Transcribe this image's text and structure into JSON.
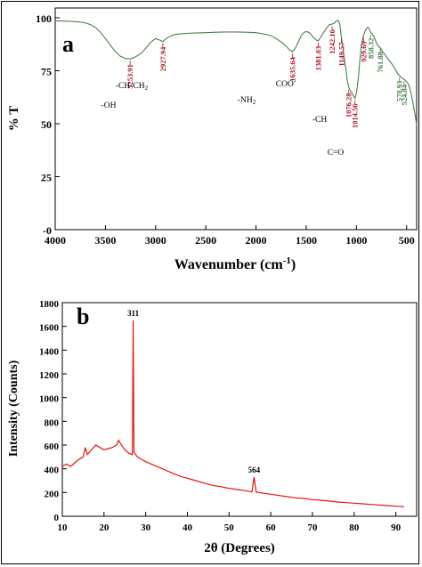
{
  "chart_data": [
    {
      "type": "line",
      "panel_label": "a",
      "xlabel": "Wavenumber (cm",
      "xlabel_sup": "-1",
      "xlabel_close": ")",
      "ylabel": "% T",
      "xlim": [
        4000,
        400
      ],
      "ylim": [
        0,
        100
      ],
      "x_ticks": [
        4000,
        3500,
        3000,
        2500,
        2000,
        1500,
        1000,
        500
      ],
      "y_ticks": [
        0,
        25,
        50,
        75,
        100
      ],
      "y_tick_labels": [
        "-0",
        "25",
        "50",
        "75",
        "100"
      ],
      "series": [
        {
          "color": "#4a7f4a",
          "x": [
            4000,
            3950,
            3900,
            3850,
            3800,
            3750,
            3700,
            3650,
            3600,
            3550,
            3500,
            3450,
            3400,
            3350,
            3300,
            3254,
            3210,
            3150,
            3100,
            3050,
            3000,
            2960,
            2928,
            2900,
            2850,
            2800,
            2700,
            2600,
            2500,
            2400,
            2300,
            2200,
            2100,
            2000,
            1900,
            1850,
            1800,
            1750,
            1700,
            1670,
            1636,
            1610,
            1580,
            1550,
            1520,
            1490,
            1460,
            1430,
            1400,
            1381,
            1360,
            1330,
            1300,
            1270,
            1242,
            1220,
            1200,
            1180,
            1165,
            1150,
            1135,
            1120,
            1100,
            1090,
            1076,
            1060,
            1045,
            1030,
            1015,
            1005,
            995,
            980,
            965,
            950,
            930,
            915,
            900,
            885,
            870,
            858,
            845,
            830,
            815,
            800,
            780,
            762,
            745,
            730,
            715,
            700,
            680,
            660,
            640,
            620,
            600,
            585,
            571,
            560,
            545,
            525,
            510,
            495,
            480,
            465,
            450,
            430,
            415,
            400
          ],
          "y": [
            98.5,
            98.5,
            98.4,
            98.3,
            98.2,
            98,
            97.6,
            96.8,
            95.5,
            93.2,
            90.2,
            87,
            84,
            81.8,
            80.8,
            80.6,
            81.3,
            83,
            85.5,
            88.4,
            90.2,
            89.5,
            88.8,
            90,
            91.5,
            92.2,
            92.6,
            92.8,
            93,
            93.2,
            93.3,
            93.3,
            93.2,
            93,
            92.2,
            91.5,
            90.2,
            88.6,
            86.6,
            85,
            84,
            85.5,
            88.5,
            91.5,
            93.2,
            93.5,
            92.6,
            90.8,
            89.5,
            89.2,
            90.5,
            92.8,
            95,
            96.8,
            97,
            97.5,
            98.5,
            98.8,
            97,
            91,
            86,
            80.5,
            74,
            70,
            67,
            65.5,
            64.5,
            63.3,
            62,
            63.5,
            66,
            72,
            80.5,
            87.5,
            91.5,
            93.5,
            95,
            95.5,
            94.5,
            93,
            92.5,
            91.5,
            90,
            88,
            86.5,
            85.8,
            84.5,
            83.5,
            82.6,
            81.5,
            80.2,
            79,
            77.8,
            76.2,
            74.5,
            73.5,
            72.8,
            72.2,
            71.6,
            71,
            70.4,
            69.5,
            68.5,
            66,
            63,
            58,
            54,
            49.5
          ]
        }
      ],
      "annotations": [
        {
          "x": 3253.91,
          "y": 80.6,
          "text": "3253.91",
          "color": "#b0182a",
          "rotated": true
        },
        {
          "x": 2927.94,
          "y": 88.8,
          "text": "2927.94",
          "color": "#b0182a",
          "rotated": true
        },
        {
          "x": 1635.64,
          "y": 84,
          "text": "1635.64",
          "color": "#b0182a",
          "rotated": true
        },
        {
          "x": 1381.03,
          "y": 89.2,
          "text": "1381.03",
          "color": "#b0182a",
          "rotated": true
        },
        {
          "x": 1242.16,
          "y": 97,
          "text": "1242.16",
          "color": "#b0182a",
          "rotated": true
        },
        {
          "x": 1149.57,
          "y": 91,
          "text": "1149.57",
          "color": "#b0182a",
          "rotated": true
        },
        {
          "x": 1076.28,
          "y": 67,
          "text": "1076.28",
          "color": "#b0182a",
          "rotated": true
        },
        {
          "x": 1014.56,
          "y": 62,
          "text": "1014.56",
          "color": "#b0182a",
          "rotated": true
        },
        {
          "x": 929.69,
          "y": 91.5,
          "text": "929.69",
          "color": "#b0182a",
          "rotated": true
        },
        {
          "x": 858.32,
          "y": 93,
          "text": "858.32",
          "color": "#4a7f4a",
          "rotated": true
        },
        {
          "x": 761.88,
          "y": 86.5,
          "text": "761.88",
          "color": "#4a7f4a",
          "rotated": true
        },
        {
          "x": 570.93,
          "y": 72.8,
          "text": "570.93",
          "color": "#4a7f4a",
          "rotated": true
        },
        {
          "x": 524.84,
          "y": 71,
          "text": "524.84",
          "color": "#4a7f4a",
          "rotated": true
        }
      ],
      "group_labels": [
        {
          "text": "-OH",
          "key": "oh"
        },
        {
          "text": "-CH-CH",
          "sub": "2",
          "key": "chch2"
        },
        {
          "text": "-NH",
          "sub": "2",
          "key": "nh2"
        },
        {
          "text": "COO",
          "sup": "-",
          "key": "coo"
        },
        {
          "text": "-CH",
          "key": "ch"
        },
        {
          "text": "C=O",
          "key": "co"
        }
      ]
    },
    {
      "type": "line",
      "panel_label": "b",
      "xlabel": "2θ (Degrees)",
      "ylabel": "Intensity (Counts)",
      "xlim": [
        10,
        95
      ],
      "ylim": [
        0,
        1800
      ],
      "x_ticks": [
        10,
        20,
        30,
        40,
        50,
        60,
        70,
        80,
        90
      ],
      "y_ticks": [
        0,
        200,
        400,
        600,
        800,
        1000,
        1200,
        1400,
        1600,
        1800
      ],
      "series": [
        {
          "color": "#e8130f",
          "x": [
            10,
            11,
            12,
            13,
            14,
            15,
            15.5,
            16,
            17,
            18,
            19,
            20,
            21,
            22,
            23,
            23.5,
            24,
            25,
            26,
            26.8,
            27,
            27.2,
            28,
            29,
            30,
            32,
            34,
            36,
            38,
            40,
            42,
            44,
            46,
            48,
            50,
            52,
            54,
            55.5,
            56,
            56.5,
            58,
            60,
            62,
            64,
            66,
            68,
            70,
            72,
            74,
            76,
            78,
            80,
            82,
            84,
            86,
            88,
            90,
            92
          ],
          "y": [
            420,
            440,
            420,
            450,
            480,
            500,
            580,
            520,
            560,
            600,
            580,
            560,
            570,
            580,
            600,
            640,
            610,
            560,
            530,
            520,
            1650,
            540,
            500,
            480,
            460,
            430,
            400,
            370,
            340,
            320,
            300,
            280,
            260,
            250,
            235,
            225,
            215,
            205,
            330,
            205,
            195,
            185,
            175,
            165,
            155,
            150,
            140,
            135,
            128,
            120,
            115,
            110,
            105,
            100,
            95,
            90,
            85,
            80
          ]
        }
      ],
      "annotations": [
        {
          "x": 27,
          "y": 1650,
          "text": "311",
          "color": "#000000"
        },
        {
          "x": 56,
          "y": 330,
          "text": "564",
          "color": "#000000"
        }
      ]
    }
  ]
}
